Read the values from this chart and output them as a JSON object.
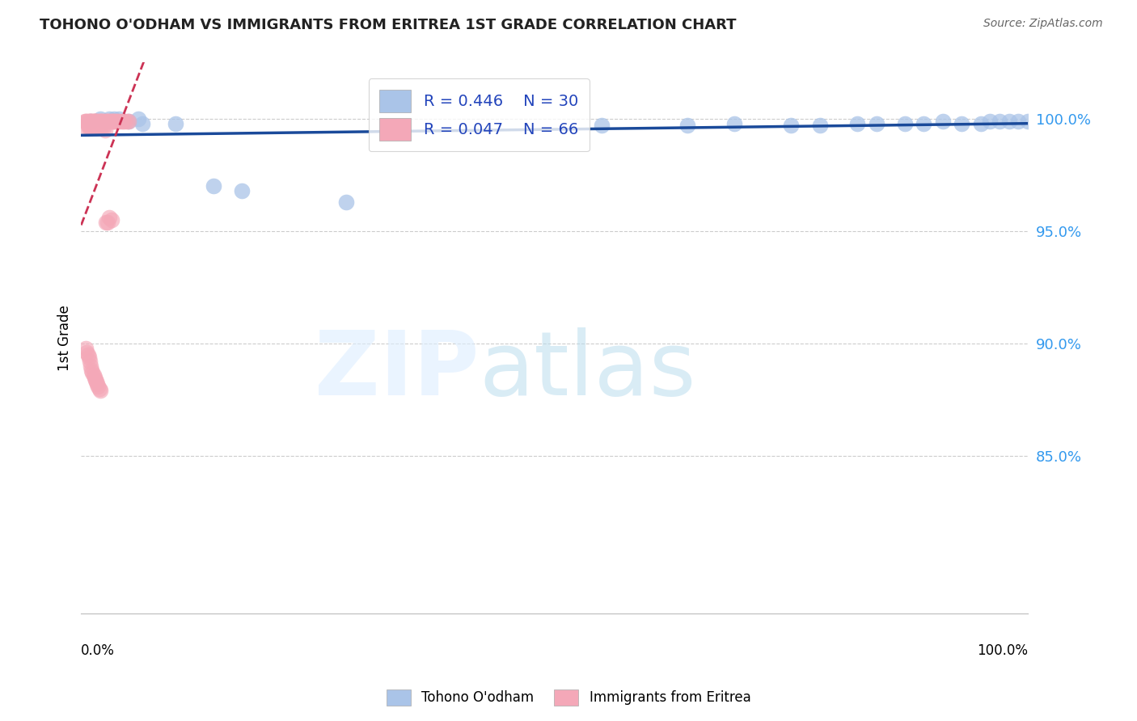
{
  "title": "TOHONO O'ODHAM VS IMMIGRANTS FROM ERITREA 1ST GRADE CORRELATION CHART",
  "source": "Source: ZipAtlas.com",
  "ylabel": "1st Grade",
  "ytick_labels": [
    "85.0%",
    "90.0%",
    "95.0%",
    "100.0%"
  ],
  "ytick_vals": [
    0.85,
    0.9,
    0.95,
    1.0
  ],
  "ylim": [
    0.78,
    1.025
  ],
  "xlim": [
    0.0,
    1.0
  ],
  "legend_r1": "R = 0.446",
  "legend_n1": "N = 30",
  "legend_r2": "R = 0.047",
  "legend_n2": "N = 66",
  "blue_color": "#aac4e8",
  "pink_color": "#f4a8b8",
  "blue_line_color": "#1a4a9a",
  "pink_line_color": "#cc3355",
  "blue_scatter_x": [
    0.01,
    0.02,
    0.025,
    0.03,
    0.035,
    0.04,
    0.05,
    0.06,
    0.065,
    0.1,
    0.14,
    0.17,
    0.28,
    0.55,
    0.64,
    0.69,
    0.75,
    0.78,
    0.82,
    0.84,
    0.87,
    0.89,
    0.91,
    0.93,
    0.95,
    0.96,
    0.97,
    0.98,
    0.99,
    1.0
  ],
  "blue_scatter_y": [
    0.999,
    1.0,
    0.999,
    1.0,
    1.0,
    1.0,
    0.999,
    1.0,
    0.998,
    0.998,
    0.97,
    0.968,
    0.963,
    0.997,
    0.997,
    0.998,
    0.997,
    0.997,
    0.998,
    0.998,
    0.998,
    0.998,
    0.999,
    0.998,
    0.998,
    0.999,
    0.999,
    0.999,
    0.999,
    0.999
  ],
  "pink_scatter_x": [
    0.004,
    0.005,
    0.006,
    0.007,
    0.008,
    0.009,
    0.01,
    0.01,
    0.011,
    0.012,
    0.013,
    0.013,
    0.014,
    0.014,
    0.015,
    0.015,
    0.016,
    0.017,
    0.018,
    0.019,
    0.02,
    0.02,
    0.021,
    0.022,
    0.023,
    0.024,
    0.025,
    0.026,
    0.027,
    0.028,
    0.029,
    0.03,
    0.031,
    0.032,
    0.033,
    0.034,
    0.035,
    0.036,
    0.037,
    0.038,
    0.04,
    0.042,
    0.044,
    0.046,
    0.048,
    0.05,
    0.006,
    0.007,
    0.008,
    0.009,
    0.01,
    0.011,
    0.012,
    0.013,
    0.015,
    0.016,
    0.017,
    0.018,
    0.02,
    0.022,
    0.024,
    0.025,
    0.026,
    0.028,
    0.03,
    0.032
  ],
  "pink_scatter_y": [
    0.999,
    0.999,
    0.999,
    0.999,
    0.999,
    0.999,
    0.999,
    0.999,
    0.999,
    0.999,
    0.999,
    0.999,
    0.999,
    0.999,
    0.999,
    0.999,
    0.999,
    0.999,
    0.999,
    0.999,
    0.999,
    0.999,
    0.999,
    0.999,
    0.999,
    0.999,
    0.999,
    0.999,
    0.999,
    0.999,
    0.999,
    0.999,
    0.999,
    0.999,
    0.999,
    0.999,
    0.999,
    0.999,
    0.999,
    0.999,
    0.999,
    0.999,
    0.999,
    0.999,
    0.999,
    0.999,
    0.996,
    0.997,
    0.996,
    0.997,
    0.996,
    0.996,
    0.996,
    0.996,
    0.996,
    0.996,
    0.996,
    0.996,
    0.996,
    0.996,
    0.996,
    0.995,
    0.954,
    0.954,
    0.956,
    0.955
  ],
  "pink_low_x": [
    0.005,
    0.006,
    0.007,
    0.008,
    0.009,
    0.01,
    0.011,
    0.012,
    0.013,
    0.014,
    0.015,
    0.016,
    0.017,
    0.018,
    0.019,
    0.02
  ],
  "pink_low_y": [
    0.898,
    0.896,
    0.895,
    0.894,
    0.892,
    0.89,
    0.888,
    0.887,
    0.886,
    0.885,
    0.884,
    0.883,
    0.882,
    0.881,
    0.88,
    0.879
  ],
  "blue_line_x0": 0.0,
  "blue_line_x1": 1.0,
  "blue_line_y0": 0.978,
  "blue_line_y1": 0.999,
  "pink_line_x0": 0.0,
  "pink_line_x1": 1.0,
  "pink_line_y0": 0.976,
  "pink_line_y1": 0.994
}
